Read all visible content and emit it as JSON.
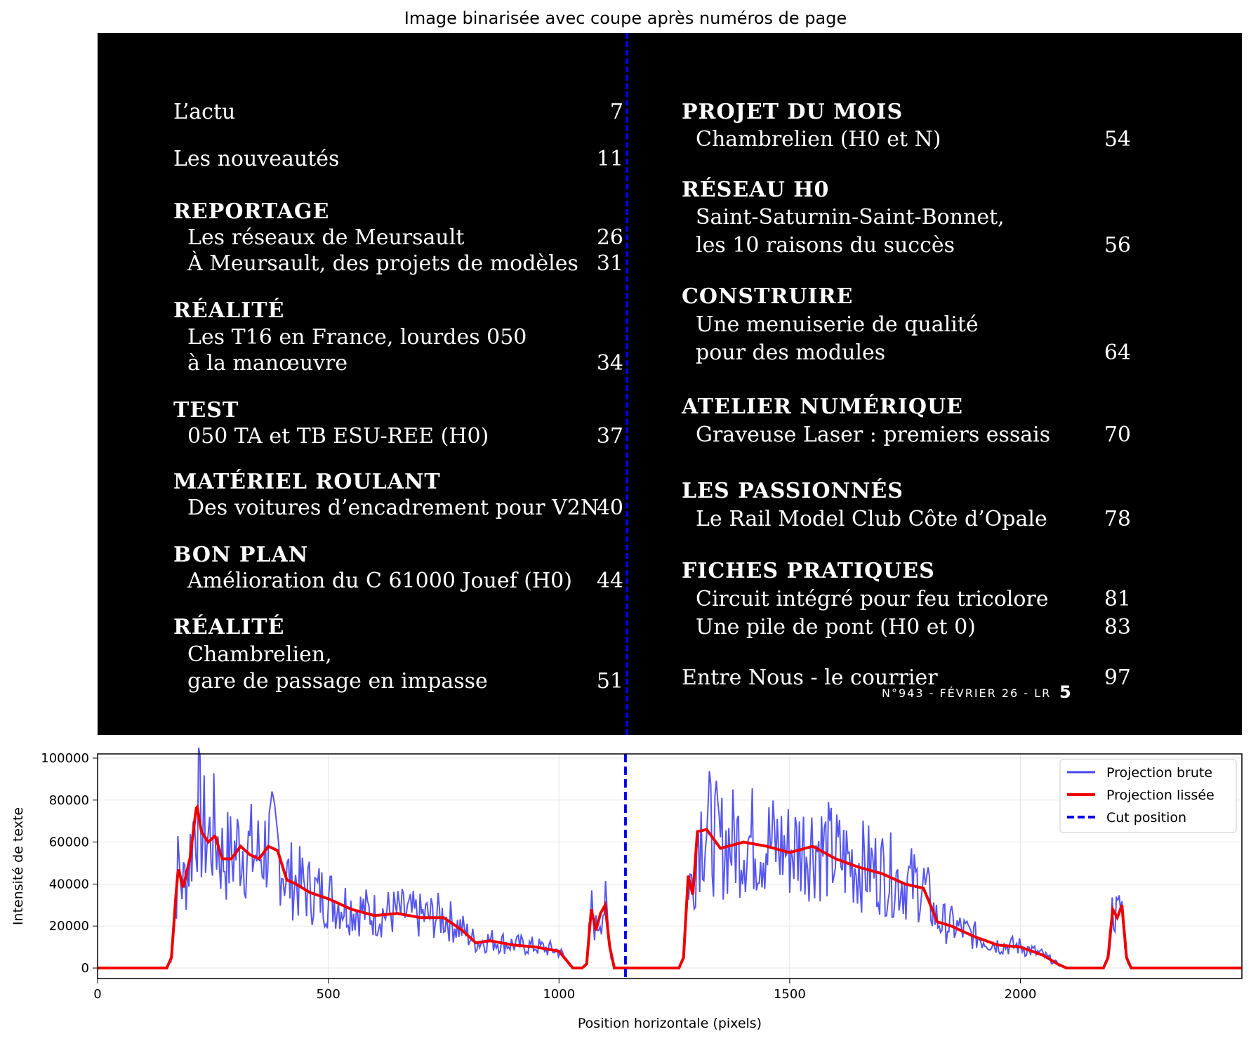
{
  "figure": {
    "title": "Image binarisée avec coupe après numéros de page"
  },
  "toc": {
    "left": [
      {
        "text": "L’actu",
        "page": "7",
        "heading": false,
        "indent": false
      },
      {
        "text": "Les nouveautés",
        "page": "11",
        "heading": false,
        "indent": false
      },
      {
        "text": "REPORTAGE",
        "page": "",
        "heading": true,
        "indent": false
      },
      {
        "text": "Les réseaux de Meursault",
        "page": "26",
        "heading": false,
        "indent": true
      },
      {
        "text": "À Meursault, des projets de modèles",
        "page": "31",
        "heading": false,
        "indent": true
      },
      {
        "text": "RÉALITÉ",
        "page": "",
        "heading": true,
        "indent": false
      },
      {
        "text": "Les T16 en France, lourdes 050",
        "page": "",
        "heading": false,
        "indent": true
      },
      {
        "text": "à la manœuvre",
        "page": "34",
        "heading": false,
        "indent": true
      },
      {
        "text": "TEST",
        "page": "",
        "heading": true,
        "indent": false
      },
      {
        "text": "050 TA et TB ESU-REE (H0)",
        "page": "37",
        "heading": false,
        "indent": true
      },
      {
        "text": "MATÉRIEL ROULANT",
        "page": "",
        "heading": true,
        "indent": false
      },
      {
        "text": "Des voitures d’encadrement pour V2N",
        "page": "40",
        "heading": false,
        "indent": true
      },
      {
        "text": "BON PLAN",
        "page": "",
        "heading": true,
        "indent": false
      },
      {
        "text": "Amélioration du C 61000 Jouef (H0)",
        "page": "44",
        "heading": false,
        "indent": true
      },
      {
        "text": "RÉALITÉ",
        "page": "",
        "heading": true,
        "indent": false
      },
      {
        "text": "Chambrelien,",
        "page": "",
        "heading": false,
        "indent": true
      },
      {
        "text": "gare de passage en impasse",
        "page": "51",
        "heading": false,
        "indent": true
      }
    ],
    "right": [
      {
        "text": "PROJET DU MOIS",
        "page": "",
        "heading": true,
        "indent": false
      },
      {
        "text": "Chambrelien  (H0 et N)",
        "page": "54",
        "heading": false,
        "indent": true
      },
      {
        "text": "RÉSEAU H0",
        "page": "",
        "heading": true,
        "indent": false
      },
      {
        "text": "Saint-Saturnin-Saint-Bonnet,",
        "page": "",
        "heading": false,
        "indent": true
      },
      {
        "text": "les 10 raisons du succès",
        "page": "56",
        "heading": false,
        "indent": true
      },
      {
        "text": "CONSTRUIRE",
        "page": "",
        "heading": true,
        "indent": false
      },
      {
        "text": "Une menuiserie de qualité",
        "page": "",
        "heading": false,
        "indent": true
      },
      {
        "text": "pour des modules",
        "page": "64",
        "heading": false,
        "indent": true
      },
      {
        "text": "ATELIER NUMÉRIQUE",
        "page": "",
        "heading": true,
        "indent": false
      },
      {
        "text": "Graveuse Laser : premiers essais",
        "page": "70",
        "heading": false,
        "indent": true
      },
      {
        "text": "LES PASSIONNÉS",
        "page": "",
        "heading": true,
        "indent": false
      },
      {
        "text": "Le Rail Model Club Côte d’Opale",
        "page": "78",
        "heading": false,
        "indent": true
      },
      {
        "text": "FICHES PRATIQUES",
        "page": "",
        "heading": true,
        "indent": false
      },
      {
        "text": "Circuit intégré pour feu tricolore",
        "page": "81",
        "heading": false,
        "indent": true
      },
      {
        "text": "Une pile de pont (H0 et 0)",
        "page": "83",
        "heading": false,
        "indent": true
      },
      {
        "text": "Entre Nous - le courrier",
        "page": "97",
        "heading": false,
        "indent": false
      }
    ],
    "footer": {
      "text": "N°943 - FÉVRIER 26 - LR",
      "page": "5"
    }
  },
  "colors": {
    "raw": "#4444ee",
    "smooth": "#ee0000",
    "cut": "#0000ee"
  },
  "chart_data": {
    "type": "line",
    "xlabel": "Position horizontale (pixels)",
    "ylabel": "Intensité de texte",
    "xlim": [
      0,
      2480
    ],
    "ylim": [
      -5000,
      102000
    ],
    "xticks": [
      0,
      500,
      1000,
      1500,
      2000
    ],
    "yticks": [
      0,
      20000,
      40000,
      60000,
      80000,
      100000
    ],
    "grid": true,
    "legend_position": "top-right",
    "cut_position": 1144,
    "legend": [
      "Projection brute",
      "Projection lissée",
      "Cut position"
    ],
    "series": [
      {
        "name": "Projection lissée",
        "x": [
          0,
          150,
          160,
          170,
          175,
          185,
          200,
          215,
          225,
          240,
          255,
          270,
          290,
          310,
          330,
          350,
          370,
          390,
          410,
          430,
          460,
          500,
          550,
          600,
          650,
          700,
          750,
          790,
          820,
          850,
          900,
          950,
          1000,
          1030,
          1040,
          1050,
          1060,
          1070,
          1080,
          1090,
          1100,
          1110,
          1120,
          1130,
          1140,
          1150,
          1200,
          1260,
          1270,
          1280,
          1290,
          1300,
          1320,
          1350,
          1400,
          1450,
          1500,
          1550,
          1600,
          1650,
          1700,
          1750,
          1790,
          1820,
          1850,
          1900,
          1950,
          2000,
          2050,
          2080,
          2100,
          2120,
          2130,
          2150,
          2180,
          2190,
          2200,
          2210,
          2220,
          2230,
          2240,
          2250,
          2480
        ],
        "values": [
          0,
          0,
          5000,
          35000,
          48000,
          38000,
          52000,
          78000,
          65000,
          60000,
          63000,
          52000,
          52000,
          58000,
          54000,
          52000,
          58000,
          56000,
          42000,
          40000,
          36000,
          33000,
          28000,
          25000,
          26000,
          24000,
          24000,
          18000,
          12000,
          13000,
          11000,
          10000,
          8000,
          0,
          0,
          0,
          2000,
          28000,
          18000,
          26000,
          30000,
          10000,
          0,
          0,
          0,
          0,
          0,
          0,
          5000,
          44000,
          35000,
          65000,
          66000,
          57000,
          60000,
          58000,
          55000,
          58000,
          52000,
          48000,
          45000,
          40000,
          38000,
          22000,
          20000,
          15000,
          11000,
          10000,
          6000,
          2000,
          0,
          0,
          0,
          0,
          0,
          5000,
          28000,
          24000,
          30000,
          5000,
          0,
          0,
          0
        ]
      }
    ]
  }
}
